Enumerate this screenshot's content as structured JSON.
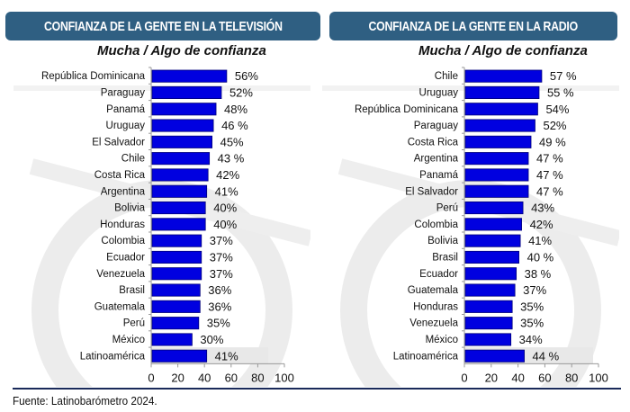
{
  "footer": {
    "source": "Fuente: Latinobarómetro 2024."
  },
  "colors": {
    "header_bg": "#2f5f82",
    "bar": "#0000e0",
    "bar_border": "#00007a",
    "highlight_bg": "#e8e8e8"
  },
  "chart_data": [
    {
      "type": "bar",
      "orientation": "horizontal",
      "title": "CONFIANZA DE LA GENTE EN LA TELEVISIÓN",
      "subtitle": "Mucha / Algo de confianza",
      "xlim": [
        0,
        100
      ],
      "xticks": [
        0,
        20,
        40,
        60,
        80,
        100
      ],
      "highlight": "Latinoamérica",
      "categories": [
        "República Dominicana",
        "Paraguay",
        "Panamá",
        "Uruguay",
        "El Salvador",
        "Chile",
        "Costa Rica",
        "Argentina",
        "Bolivia",
        "Honduras",
        "Colombia",
        "Ecuador",
        "Venezuela",
        "Brasil",
        "Guatemala",
        "Perú",
        "México",
        "Latinoamérica"
      ],
      "values": [
        56,
        52,
        48,
        46,
        45,
        43,
        42,
        41,
        40,
        40,
        37,
        37,
        37,
        36,
        36,
        35,
        30,
        41
      ],
      "labels": [
        "56%",
        "52%",
        "48%",
        "46 %",
        "45%",
        "43 %",
        "42%",
        "41%",
        "40%",
        "40%",
        "37%",
        "37%",
        "37%",
        "36%",
        "36%",
        "35%",
        "30%",
        "41%"
      ]
    },
    {
      "type": "bar",
      "orientation": "horizontal",
      "title": "CONFIANZA DE LA GENTE EN LA RADIO",
      "subtitle": "Mucha / Algo de confianza",
      "xlim": [
        0,
        100
      ],
      "xticks": [
        0,
        20,
        40,
        60,
        80,
        100
      ],
      "highlight": "Latinoamérica",
      "categories": [
        "Chile",
        "Uruguay",
        "República Dominicana",
        "Paraguay",
        "Costa Rica",
        "Argentina",
        "Panamá",
        "El Salvador",
        "Perú",
        "Colombia",
        "Bolivia",
        "Brasil",
        "Ecuador",
        "Guatemala",
        "Honduras",
        "Venezuela",
        "México",
        "Latinoamérica"
      ],
      "values": [
        57,
        55,
        54,
        52,
        49,
        47,
        47,
        47,
        43,
        42,
        41,
        40,
        38,
        37,
        35,
        35,
        34,
        44
      ],
      "labels": [
        "57 %",
        "55 %",
        "54%",
        "52%",
        "49 %",
        "47 %",
        "47 %",
        "47 %",
        "43%",
        "42%",
        "41%",
        "40 %",
        "38 %",
        "37%",
        "35%",
        "35%",
        "34%",
        "44  %"
      ]
    }
  ]
}
